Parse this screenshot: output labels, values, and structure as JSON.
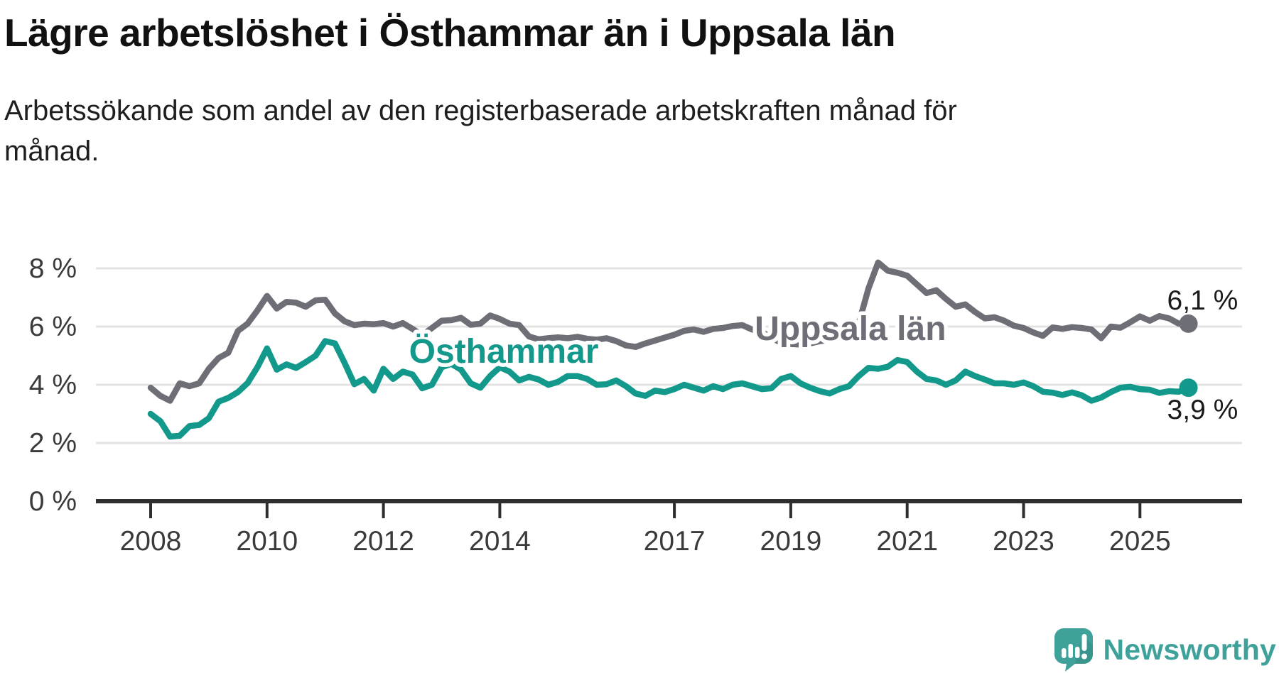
{
  "title": "Lägre arbetslöshet i Östhammar än i Uppsala län",
  "subtitle": "Arbetssökande som andel av den registerbaserade arbetskraften månad för månad.",
  "colors": {
    "uppsala_line": "#6e6e77",
    "osthammar_line": "#12998b",
    "gridline": "#e3e3e3",
    "axis": "#2e2e2e",
    "tick_label": "#3a3a3a",
    "end_label_text": "#1a1a1a",
    "logo_teal": "#3ea29a",
    "background": "#ffffff"
  },
  "chart_data": {
    "type": "line",
    "title": "Lägre arbetslöshet i Östhammar än i Uppsala län",
    "subtitle": "Arbetssökande som andel av den registerbaserade arbetskraften månad för månad.",
    "unit": "%",
    "grid": true,
    "x_start_year": 2008.0,
    "x_step_years": 0.1666667,
    "x_tick_years": [
      2008,
      2010,
      2012,
      2014,
      2017,
      2019,
      2021,
      2023,
      2025
    ],
    "x_tick_labels": [
      "2008",
      "2010",
      "2012",
      "2014",
      "2017",
      "2019",
      "2021",
      "2023",
      "2025"
    ],
    "y_ticks": [
      0,
      2,
      4,
      6,
      8
    ],
    "y_tick_labels": [
      "0 %",
      "2 %",
      "4 %",
      "6 %",
      "8 %"
    ],
    "y_gridlines": [
      2,
      4,
      6,
      8
    ],
    "ylim": [
      0,
      8.6
    ],
    "xlim": [
      2007.1,
      2026.75
    ],
    "legend_position": "inline-labels",
    "series": [
      {
        "name": "Uppsala län",
        "color": "#6e6e77",
        "end_label": "6,1 %",
        "end_value": 6.1,
        "label_year": 2018.38,
        "label_value": 5.54,
        "values": [
          3.9,
          3.62,
          3.45,
          4.05,
          3.95,
          4.05,
          4.55,
          4.92,
          5.1,
          5.85,
          6.1,
          6.55,
          7.05,
          6.62,
          6.85,
          6.82,
          6.68,
          6.9,
          6.92,
          6.45,
          6.18,
          6.05,
          6.1,
          6.08,
          6.12,
          6.0,
          6.12,
          5.92,
          5.7,
          5.95,
          6.2,
          6.22,
          6.3,
          6.06,
          6.1,
          6.38,
          6.26,
          6.1,
          6.05,
          5.66,
          5.56,
          5.6,
          5.63,
          5.6,
          5.65,
          5.58,
          5.55,
          5.6,
          5.5,
          5.35,
          5.3,
          5.42,
          5.52,
          5.62,
          5.72,
          5.85,
          5.9,
          5.82,
          5.92,
          5.95,
          6.02,
          6.05,
          5.9,
          5.83,
          5.6,
          5.45,
          5.4,
          5.38,
          5.42,
          5.5,
          5.55,
          5.6,
          5.68,
          6.1,
          7.3,
          8.2,
          7.92,
          7.85,
          7.75,
          7.45,
          7.15,
          7.25,
          6.95,
          6.68,
          6.76,
          6.5,
          6.28,
          6.32,
          6.2,
          6.03,
          5.95,
          5.8,
          5.68,
          5.97,
          5.92,
          5.98,
          5.95,
          5.9,
          5.6,
          6.0,
          5.96,
          6.15,
          6.35,
          6.2,
          6.36,
          6.28,
          6.1,
          6.1
        ]
      },
      {
        "name": "Östhammar",
        "color": "#12998b",
        "end_label": "3,9 %",
        "end_value": 3.9,
        "label_year": 2012.44,
        "label_value": 4.76,
        "values": [
          3.0,
          2.75,
          2.22,
          2.25,
          2.58,
          2.62,
          2.85,
          3.42,
          3.55,
          3.75,
          4.06,
          4.6,
          5.25,
          4.52,
          4.7,
          4.58,
          4.78,
          5.0,
          5.5,
          5.42,
          4.75,
          4.02,
          4.2,
          3.8,
          4.55,
          4.2,
          4.45,
          4.35,
          3.88,
          4.0,
          4.6,
          4.72,
          4.52,
          4.05,
          3.9,
          4.3,
          4.6,
          4.45,
          4.15,
          4.27,
          4.18,
          4.0,
          4.1,
          4.3,
          4.3,
          4.2,
          4.0,
          4.02,
          4.15,
          3.95,
          3.7,
          3.62,
          3.8,
          3.75,
          3.85,
          4.0,
          3.9,
          3.8,
          3.95,
          3.85,
          4.0,
          4.05,
          3.95,
          3.85,
          3.88,
          4.2,
          4.3,
          4.05,
          3.9,
          3.78,
          3.7,
          3.85,
          3.95,
          4.3,
          4.58,
          4.55,
          4.62,
          4.85,
          4.78,
          4.45,
          4.2,
          4.15,
          4.0,
          4.15,
          4.45,
          4.3,
          4.18,
          4.05,
          4.05,
          4.0,
          4.08,
          3.95,
          3.76,
          3.73,
          3.65,
          3.74,
          3.64,
          3.45,
          3.56,
          3.75,
          3.9,
          3.93,
          3.85,
          3.83,
          3.72,
          3.78,
          3.76,
          3.9
        ]
      }
    ]
  },
  "logo": {
    "text": "Newsworthy",
    "icon": "speech-bubble-bar-chart-exclamation-icon",
    "color": "#3ea29a"
  }
}
